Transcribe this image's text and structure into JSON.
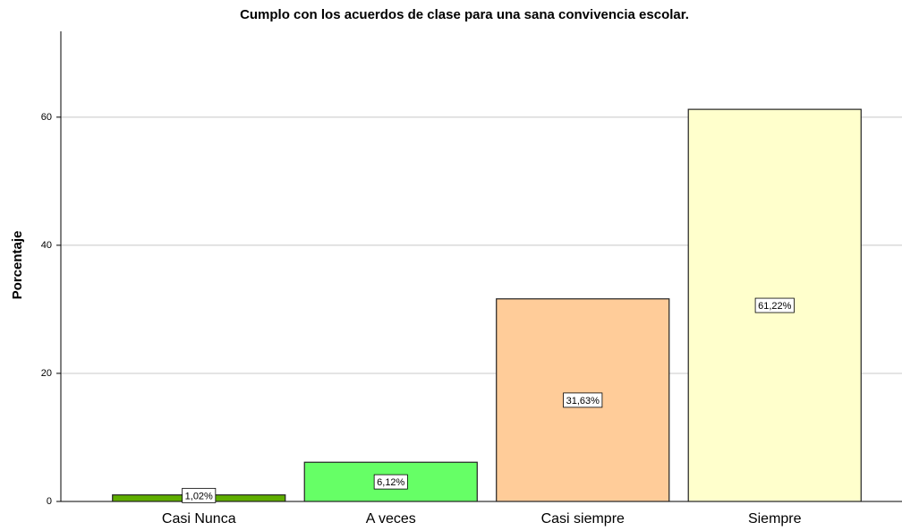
{
  "chart_data": {
    "type": "bar",
    "title": "Cumplo con los acuerdos de clase para una sana convivencia escolar.",
    "ylabel": "Porcentaje",
    "categories": [
      "Casi Nunca",
      "A veces",
      "Casi siempre",
      "Siempre"
    ],
    "values": [
      1.02,
      6.12,
      31.63,
      61.22
    ],
    "value_labels": [
      "1,02%",
      "6,12%",
      "31,63%",
      "61,22%"
    ],
    "colors": [
      "#5fae00",
      "#66ff66",
      "#ffcc99",
      "#ffffcc"
    ],
    "ylim": [
      0,
      73.4
    ],
    "yticks": [
      0,
      20,
      40,
      60
    ],
    "grid": true
  }
}
